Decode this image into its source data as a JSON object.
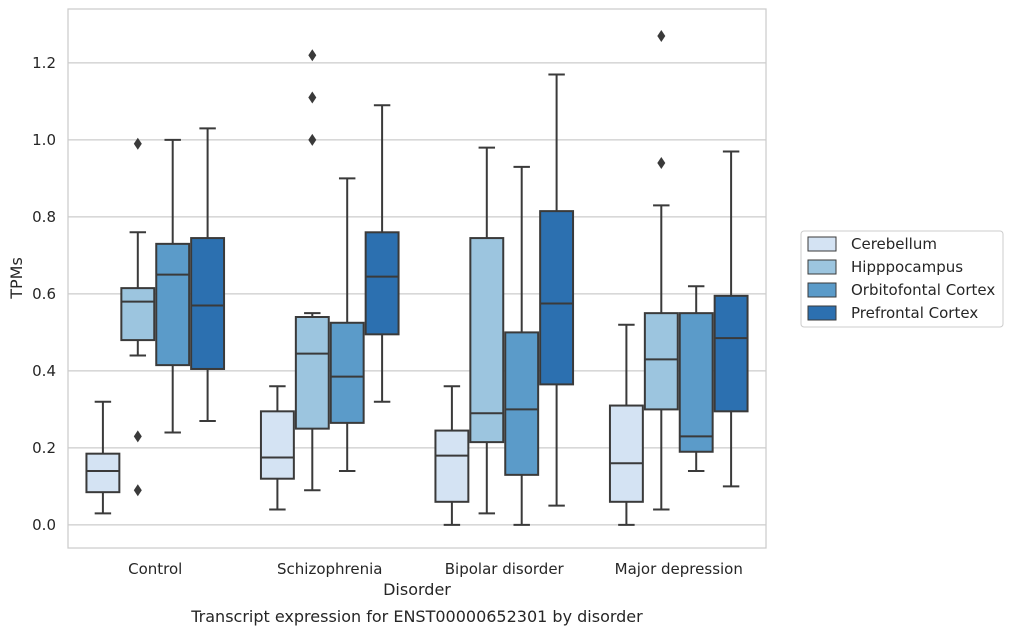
{
  "chart_data": {
    "type": "box",
    "xlabel": "Disorder",
    "ylabel": "TPMs",
    "caption": "Transcript expression for ENST00000652301 by disorder",
    "ylim": [
      -0.06,
      1.34
    ],
    "yticks": [
      "0.0",
      "0.2",
      "0.4",
      "0.6",
      "0.8",
      "1.0",
      "1.2"
    ],
    "grid": "horizontal",
    "legend_position": "right",
    "categories": [
      "Control",
      "Schizophrenia",
      "Bipolar disorder",
      "Major depression"
    ],
    "series": [
      {
        "name": "Cerebellum",
        "color": "#d4e3f3",
        "boxes": [
          {
            "whislo": 0.03,
            "q1": 0.085,
            "med": 0.14,
            "q3": 0.185,
            "whishi": 0.32,
            "fliers": []
          },
          {
            "whislo": 0.04,
            "q1": 0.12,
            "med": 0.175,
            "q3": 0.295,
            "whishi": 0.36,
            "fliers": []
          },
          {
            "whislo": 0.0,
            "q1": 0.06,
            "med": 0.18,
            "q3": 0.245,
            "whishi": 0.36,
            "fliers": []
          },
          {
            "whislo": 0.0,
            "q1": 0.06,
            "med": 0.16,
            "q3": 0.31,
            "whishi": 0.52,
            "fliers": []
          }
        ]
      },
      {
        "name": "Hipppocampus",
        "color": "#9cc5df",
        "boxes": [
          {
            "whislo": 0.44,
            "q1": 0.48,
            "med": 0.58,
            "q3": 0.615,
            "whishi": 0.76,
            "fliers": [
              0.99,
              0.23,
              0.09
            ]
          },
          {
            "whislo": 0.09,
            "q1": 0.25,
            "med": 0.445,
            "q3": 0.54,
            "whishi": 0.55,
            "fliers": [
              1.22,
              1.11,
              1.0
            ]
          },
          {
            "whislo": 0.03,
            "q1": 0.215,
            "med": 0.29,
            "q3": 0.745,
            "whishi": 0.98,
            "fliers": []
          },
          {
            "whislo": 0.04,
            "q1": 0.3,
            "med": 0.43,
            "q3": 0.55,
            "whishi": 0.83,
            "fliers": [
              1.27,
              0.94
            ]
          }
        ]
      },
      {
        "name": "Orbitofontal Cortex",
        "color": "#5b9bc9",
        "boxes": [
          {
            "whislo": 0.24,
            "q1": 0.415,
            "med": 0.65,
            "q3": 0.73,
            "whishi": 1.0,
            "fliers": []
          },
          {
            "whislo": 0.14,
            "q1": 0.265,
            "med": 0.385,
            "q3": 0.525,
            "whishi": 0.9,
            "fliers": []
          },
          {
            "whislo": 0.0,
            "q1": 0.13,
            "med": 0.3,
            "q3": 0.5,
            "whishi": 0.93,
            "fliers": []
          },
          {
            "whislo": 0.14,
            "q1": 0.19,
            "med": 0.23,
            "q3": 0.55,
            "whishi": 0.62,
            "fliers": []
          }
        ]
      },
      {
        "name": "Prefrontal Cortex",
        "color": "#2c70b0",
        "boxes": [
          {
            "whislo": 0.27,
            "q1": 0.405,
            "med": 0.57,
            "q3": 0.745,
            "whishi": 1.03,
            "fliers": []
          },
          {
            "whislo": 0.32,
            "q1": 0.495,
            "med": 0.645,
            "q3": 0.76,
            "whishi": 1.09,
            "fliers": []
          },
          {
            "whislo": 0.05,
            "q1": 0.365,
            "med": 0.575,
            "q3": 0.815,
            "whishi": 1.17,
            "fliers": []
          },
          {
            "whislo": 0.1,
            "q1": 0.295,
            "med": 0.485,
            "q3": 0.595,
            "whishi": 0.97,
            "fliers": []
          }
        ]
      }
    ]
  }
}
